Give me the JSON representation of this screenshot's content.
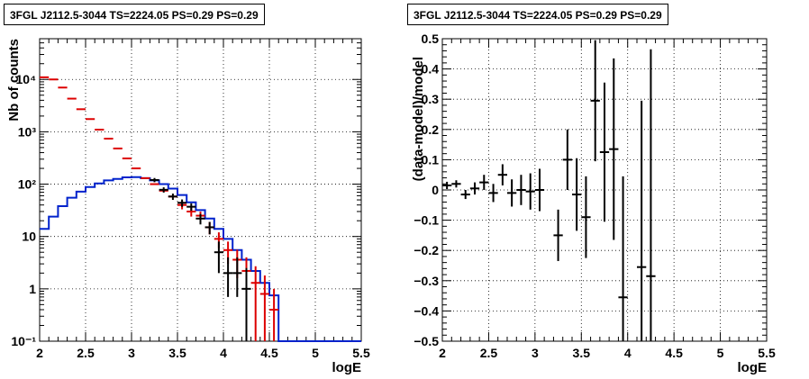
{
  "chart_data": [
    {
      "type": "step",
      "title": "3FGL J2112.5-3044 TS=2224.05 PS=0.29 PS=0.29",
      "xlabel": "logE",
      "ylabel": "Nb of counts",
      "yscale": "log",
      "xlim": [
        2,
        5.5
      ],
      "ylim": [
        0.1,
        60000
      ],
      "grid": true,
      "xticks": [
        "2",
        "2.5",
        "3",
        "3.5",
        "4",
        "4.5",
        "5",
        "5.5"
      ],
      "yticks": [
        "10⁻¹",
        "1",
        "10",
        "10²",
        "10³",
        "10⁴"
      ],
      "bin_edges": [
        2.0,
        2.1,
        2.2,
        2.3,
        2.4,
        2.5,
        2.6,
        2.7,
        2.8,
        2.9,
        3.0,
        3.1,
        3.2,
        3.3,
        3.4,
        3.5,
        3.6,
        3.7,
        3.8,
        3.9,
        4.0,
        4.1,
        4.2,
        4.3,
        4.4,
        4.5,
        4.6,
        4.7,
        4.8,
        4.9,
        5.0,
        5.1,
        5.2,
        5.3,
        5.4,
        5.5
      ],
      "series": [
        {
          "color": "#0022cc",
          "style": "histogram-step",
          "values": [
            14,
            24,
            38,
            55,
            72,
            88,
            103,
            118,
            126,
            135,
            136,
            130,
            118,
            100,
            82,
            62,
            45,
            32,
            22,
            14,
            9,
            5.5,
            3.6,
            2.2,
            1.3,
            0.75,
            0.1,
            0.1,
            0.1,
            0.1,
            0.1,
            0.1,
            0.1,
            0.1,
            0.1
          ]
        },
        {
          "color": "#dd0000",
          "style": "markers-with-error-bars",
          "x": [
            2.05,
            2.15,
            2.25,
            2.35,
            2.45,
            2.55,
            2.65,
            2.75,
            2.85,
            2.95,
            3.05,
            3.15,
            3.25,
            3.35,
            3.45,
            3.55,
            3.65,
            3.75,
            3.85,
            3.95,
            4.05,
            4.15,
            4.25,
            4.35,
            4.45,
            4.55
          ],
          "y": [
            11000,
            10000,
            7000,
            4300,
            2700,
            1750,
            1100,
            740,
            480,
            310,
            200,
            130,
            100,
            75,
            58,
            40,
            30,
            25,
            15,
            9,
            5.5,
            3.6,
            2.2,
            1.3,
            0.8,
            0.4
          ],
          "err_low": [
            0,
            0,
            0,
            0,
            0,
            0,
            0,
            0,
            0,
            0,
            0,
            0,
            0,
            0,
            0,
            7,
            6,
            5,
            4,
            3,
            2.5,
            2,
            1.8,
            1.2,
            0.75,
            0.38
          ],
          "err_high": [
            0,
            0,
            0,
            0,
            0,
            0,
            0,
            0,
            0,
            0,
            0,
            0,
            0,
            0,
            0,
            7,
            6,
            5,
            4,
            3,
            2.5,
            2,
            1.8,
            1.4,
            1.0,
            0.6
          ]
        },
        {
          "color": "#000000",
          "style": "markers-with-error-bars",
          "x": [
            3.25,
            3.35,
            3.45,
            3.55,
            3.65,
            3.75,
            3.85,
            3.95,
            4.05,
            4.15,
            4.25
          ],
          "y": [
            120,
            78,
            58,
            44,
            37,
            22,
            15,
            5,
            2,
            2,
            1
          ],
          "err_low": [
            11,
            9,
            8,
            7,
            6,
            5,
            4,
            3,
            1.3,
            1.3,
            0.9
          ],
          "err_high": [
            11,
            9,
            8,
            7,
            6,
            5,
            4,
            3,
            2,
            2,
            1.5
          ]
        }
      ]
    },
    {
      "type": "scatter",
      "title": "3FGL J2112.5-3044 TS=2224.05 PS=0.29 PS=0.29",
      "xlabel": "logE",
      "ylabel": "(data-model)/model",
      "xlim": [
        2,
        5.5
      ],
      "ylim": [
        -0.5,
        0.5
      ],
      "grid": true,
      "xticks": [
        "2",
        "2.5",
        "3",
        "3.5",
        "4",
        "4.5",
        "5",
        "5.5"
      ],
      "yticks": [
        "−0.5",
        "−0.4",
        "−0.3",
        "−0.2",
        "−0.1",
        "0",
        "0.1",
        "0.2",
        "0.3",
        "0.4",
        "0.5"
      ],
      "series": [
        {
          "color": "#000000",
          "style": "markers-with-error-bars",
          "x": [
            2.05,
            2.15,
            2.25,
            2.35,
            2.45,
            2.55,
            2.65,
            2.75,
            2.85,
            2.95,
            3.05,
            3.25,
            3.35,
            3.45,
            3.55,
            3.65,
            3.75,
            3.85,
            3.95,
            4.15,
            4.25
          ],
          "y": [
            0.015,
            0.02,
            -0.015,
            0.005,
            0.025,
            -0.01,
            0.05,
            -0.01,
            0.0,
            -0.005,
            0.0,
            -0.15,
            0.1,
            -0.015,
            -0.09,
            0.295,
            0.125,
            0.135,
            -0.355,
            -0.255,
            -0.285
          ],
          "err": [
            0.012,
            0.012,
            0.015,
            0.02,
            0.025,
            0.03,
            0.035,
            0.045,
            0.05,
            0.06,
            0.07,
            0.085,
            0.1,
            0.12,
            0.135,
            0.2,
            0.23,
            0.3,
            0.4,
            0.55,
            0.75
          ]
        }
      ]
    }
  ]
}
